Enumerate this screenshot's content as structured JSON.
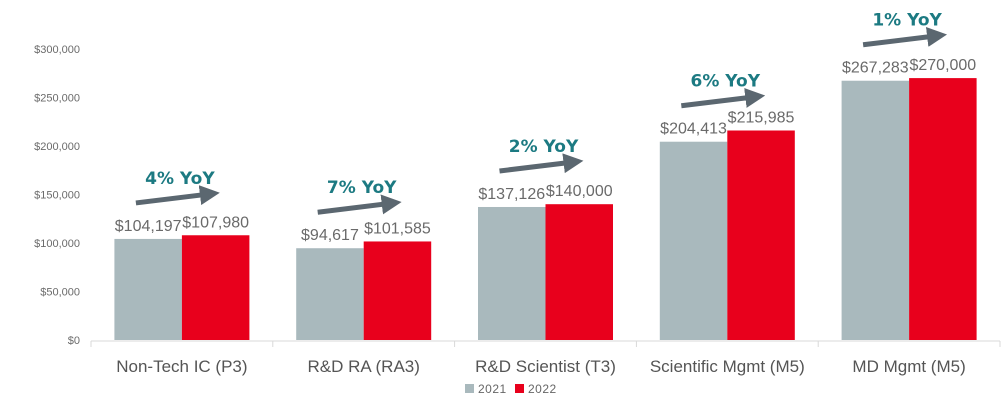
{
  "chart_data": {
    "type": "bar",
    "title": "",
    "xlabel": "",
    "ylabel": "",
    "ylim": [
      0,
      300000
    ],
    "yticks": [
      0,
      50000,
      100000,
      150000,
      200000,
      250000,
      300000
    ],
    "ytick_labels": [
      "$0",
      "$50,000",
      "$100,000",
      "$150,000",
      "$200,000",
      "$250,000",
      "$300,000"
    ],
    "grid": false,
    "legend_position": "bottom",
    "categories": [
      "Non-Tech IC (P3)",
      "R&D RA (RA3)",
      "R&D Scientist (T3)",
      "Scientific Mgmt (M5)",
      "MD Mgmt (M5)"
    ],
    "series": [
      {
        "name": "2021",
        "color": "#a9b9bd",
        "values": [
          104197,
          94617,
          137126,
          204413,
          267283
        ],
        "labels": [
          "$104,197",
          "$94,617",
          "$137,126",
          "$204,413",
          "$267,283"
        ]
      },
      {
        "name": "2022",
        "color": "#e8001c",
        "values": [
          107980,
          101585,
          140000,
          215985,
          270000
        ],
        "labels": [
          "$107,980",
          "$101,585",
          "$140,000",
          "$215,985",
          "$270,000"
        ]
      }
    ],
    "annotations": [
      {
        "category": "Non-Tech IC (P3)",
        "text": "4% YoY",
        "icon": "arrow-right-icon"
      },
      {
        "category": "R&D RA (RA3)",
        "text": "7% YoY",
        "icon": "arrow-right-icon"
      },
      {
        "category": "R&D Scientist (T3)",
        "text": "2% YoY",
        "icon": "arrow-right-icon"
      },
      {
        "category": "Scientific Mgmt (M5)",
        "text": "6% YoY",
        "icon": "arrow-right-icon"
      },
      {
        "category": "MD Mgmt (M5)",
        "text": "1% YoY",
        "icon": "arrow-right-icon"
      }
    ],
    "annotation_color": "#1c7a82",
    "arrow_color": "#5b6770"
  }
}
